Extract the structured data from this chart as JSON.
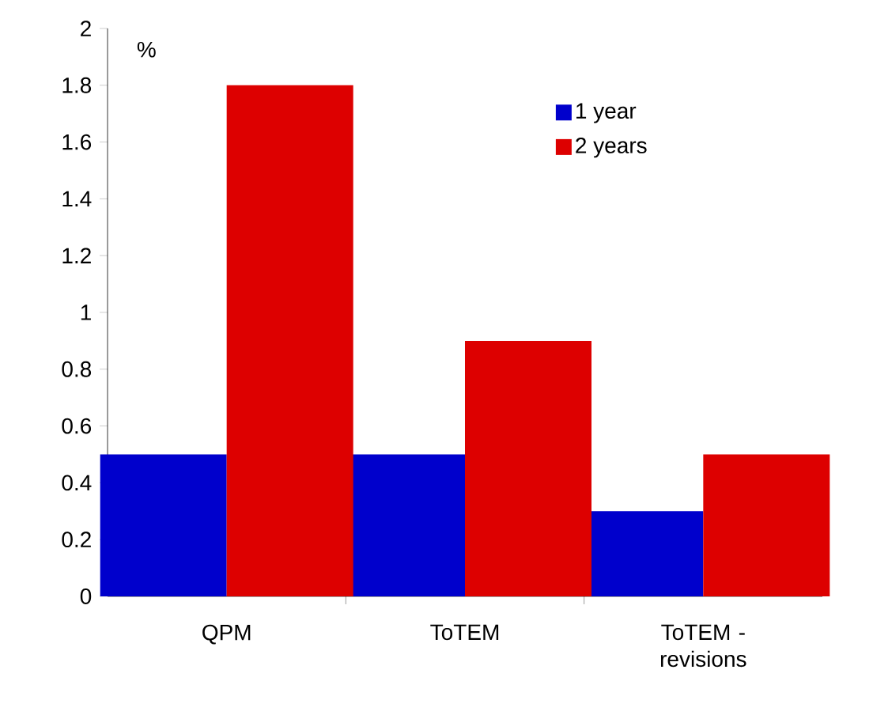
{
  "chart_data": {
    "type": "bar",
    "ylabel": "%",
    "categories": [
      "QPM",
      "ToTEM",
      "ToTEM - revisions"
    ],
    "series": [
      {
        "name": "1 year",
        "color": "#0000cc",
        "values": [
          0.5,
          0.5,
          0.3
        ]
      },
      {
        "name": "2 years",
        "color": "#dd0000",
        "values": [
          1.8,
          0.9,
          0.5
        ]
      }
    ],
    "ylim": [
      0,
      2
    ],
    "yticks": [
      0,
      0.2,
      0.4,
      0.6,
      0.8,
      1,
      1.2,
      1.4,
      1.6,
      1.8,
      2
    ],
    "legend": "top right"
  }
}
